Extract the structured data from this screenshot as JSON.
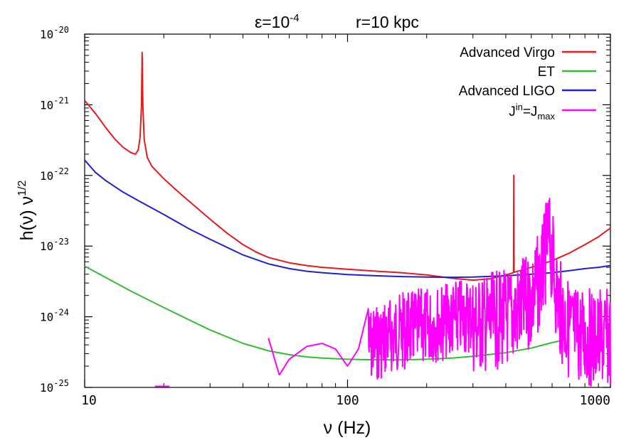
{
  "chart_data": {
    "type": "line",
    "title_parts": {
      "epsilon": "ε=10",
      "epsilon_exp": "-4",
      "distance": "r=10 kpc"
    },
    "xlabel": "ν (Hz)",
    "ylabel": {
      "base": "h(ν) ν",
      "exp": "1/2"
    },
    "x_scale": "log",
    "y_scale": "log",
    "xlim": [
      10,
      1000
    ],
    "ylim": [
      1e-25,
      1e-20
    ],
    "x_ticks": [
      {
        "value": 10,
        "label": "10"
      },
      {
        "value": 100,
        "label": "100"
      },
      {
        "value": 1000,
        "label": "1000"
      }
    ],
    "y_ticks": [
      {
        "value": 1e-20,
        "base": "10",
        "exp": "-20"
      },
      {
        "value": 1e-21,
        "base": "10",
        "exp": "-21"
      },
      {
        "value": 1e-22,
        "base": "10",
        "exp": "-22"
      },
      {
        "value": 1e-23,
        "base": "10",
        "exp": "-23"
      },
      {
        "value": 1e-24,
        "base": "10",
        "exp": "-24"
      },
      {
        "value": 1e-25,
        "base": "10",
        "exp": "-25"
      }
    ],
    "grid": false,
    "legend_position": "top-right",
    "series": [
      {
        "name": "Advanced Virgo",
        "color": "#e41a1c",
        "points": [
          [
            10,
            1.15e-21
          ],
          [
            11,
            7.5e-22
          ],
          [
            12,
            4.8e-22
          ],
          [
            13,
            3.3e-22
          ],
          [
            14,
            2.5e-22
          ],
          [
            15,
            2.1e-22
          ],
          [
            15.6,
            2e-22
          ],
          [
            16.0,
            2.3e-22
          ],
          [
            16.25,
            3.5e-22
          ],
          [
            16.45,
            1e-21
          ],
          [
            16.55,
            5.5e-21
          ],
          [
            16.65,
            1e-21
          ],
          [
            16.85,
            3.2e-22
          ],
          [
            17.3,
            1.8e-22
          ],
          [
            18,
            1.35e-22
          ],
          [
            20,
            9e-23
          ],
          [
            22,
            6.5e-23
          ],
          [
            25,
            4.3e-23
          ],
          [
            30,
            2.4e-23
          ],
          [
            35,
            1.5e-23
          ],
          [
            40,
            1.05e-23
          ],
          [
            45,
            8.2e-24
          ],
          [
            50,
            6.9e-24
          ],
          [
            60,
            5.8e-24
          ],
          [
            70,
            5.3e-24
          ],
          [
            80,
            5e-24
          ],
          [
            100,
            4.7e-24
          ],
          [
            130,
            4.4e-24
          ],
          [
            160,
            4.2e-24
          ],
          [
            200,
            3.9e-24
          ],
          [
            250,
            3.5e-24
          ],
          [
            300,
            3.3e-24
          ],
          [
            350,
            3.45e-24
          ],
          [
            400,
            3.9e-24
          ],
          [
            428,
            4.2e-24
          ],
          [
            429,
            1e-22
          ],
          [
            430,
            4.25e-24
          ],
          [
            500,
            5e-24
          ],
          [
            600,
            6.2e-24
          ],
          [
            700,
            8e-24
          ],
          [
            800,
            1.05e-23
          ],
          [
            900,
            1.35e-23
          ],
          [
            1000,
            1.8e-23
          ]
        ]
      },
      {
        "name": "ET",
        "color": "#33bb33",
        "points": [
          [
            10,
            5.2e-24
          ],
          [
            12,
            3.6e-24
          ],
          [
            15,
            2.3e-24
          ],
          [
            20,
            1.35e-24
          ],
          [
            25,
            9e-25
          ],
          [
            30,
            6.5e-25
          ],
          [
            40,
            4.2e-25
          ],
          [
            50,
            3.3e-25
          ],
          [
            60,
            2.9e-25
          ],
          [
            70,
            2.7e-25
          ],
          [
            80,
            2.6e-25
          ],
          [
            100,
            2.5e-25
          ],
          [
            130,
            2.45e-25
          ],
          [
            160,
            2.45e-25
          ],
          [
            200,
            2.5e-25
          ],
          [
            250,
            2.6e-25
          ],
          [
            300,
            2.75e-25
          ],
          [
            400,
            3.1e-25
          ],
          [
            500,
            3.6e-25
          ],
          [
            600,
            4.3e-25
          ],
          [
            650,
            4.6e-25
          ]
        ]
      },
      {
        "name": "Advanced LIGO",
        "color": "#1f1fd6",
        "points": [
          [
            10,
            1.65e-22
          ],
          [
            11,
            1.1e-22
          ],
          [
            12,
            8.5e-23
          ],
          [
            14,
            5.8e-23
          ],
          [
            16,
            4.4e-23
          ],
          [
            20,
            2.8e-23
          ],
          [
            25,
            1.75e-23
          ],
          [
            30,
            1.25e-23
          ],
          [
            40,
            7.5e-24
          ],
          [
            50,
            5.6e-24
          ],
          [
            60,
            4.8e-24
          ],
          [
            70,
            4.4e-24
          ],
          [
            80,
            4.2e-24
          ],
          [
            100,
            3.95e-24
          ],
          [
            130,
            3.8e-24
          ],
          [
            160,
            3.7e-24
          ],
          [
            200,
            3.65e-24
          ],
          [
            250,
            3.62e-24
          ],
          [
            300,
            3.65e-24
          ],
          [
            400,
            3.8e-24
          ],
          [
            500,
            4e-24
          ],
          [
            600,
            4.2e-24
          ],
          [
            700,
            4.5e-24
          ],
          [
            800,
            4.8e-24
          ],
          [
            900,
            5e-24
          ],
          [
            1000,
            5.3e-24
          ]
        ]
      },
      {
        "name": "J^in=J_max",
        "legend_label": {
          "j": "J",
          "sup": "in",
          "eq": "=J",
          "sub": "max"
        },
        "color": "#ff00ff",
        "envelope": [
          [
            50,
            5e-25
          ],
          [
            55,
            1.5e-25
          ],
          [
            60,
            2.5e-25
          ],
          [
            70,
            3.8e-25
          ],
          [
            80,
            4.2e-25
          ],
          [
            90,
            3.5e-25
          ],
          [
            100,
            2e-25
          ],
          [
            110,
            3.5e-25
          ],
          [
            120,
            1.3e-24
          ],
          [
            140,
            1.8e-24
          ],
          [
            160,
            2.2e-24
          ],
          [
            200,
            2.6e-24
          ],
          [
            250,
            3.2e-24
          ],
          [
            300,
            3.8e-24
          ],
          [
            350,
            4.2e-24
          ],
          [
            400,
            4.8e-24
          ],
          [
            450,
            6e-24
          ],
          [
            500,
            8.5e-24
          ],
          [
            550,
            2e-23
          ],
          [
            580,
            6.5e-23
          ],
          [
            600,
            3.5e-23
          ],
          [
            620,
            1.3e-23
          ],
          [
            650,
            5.5e-24
          ],
          [
            700,
            3.2e-24
          ],
          [
            800,
            2.6e-24
          ],
          [
            900,
            2.4e-24
          ],
          [
            1000,
            2.5e-24
          ]
        ]
      }
    ]
  }
}
